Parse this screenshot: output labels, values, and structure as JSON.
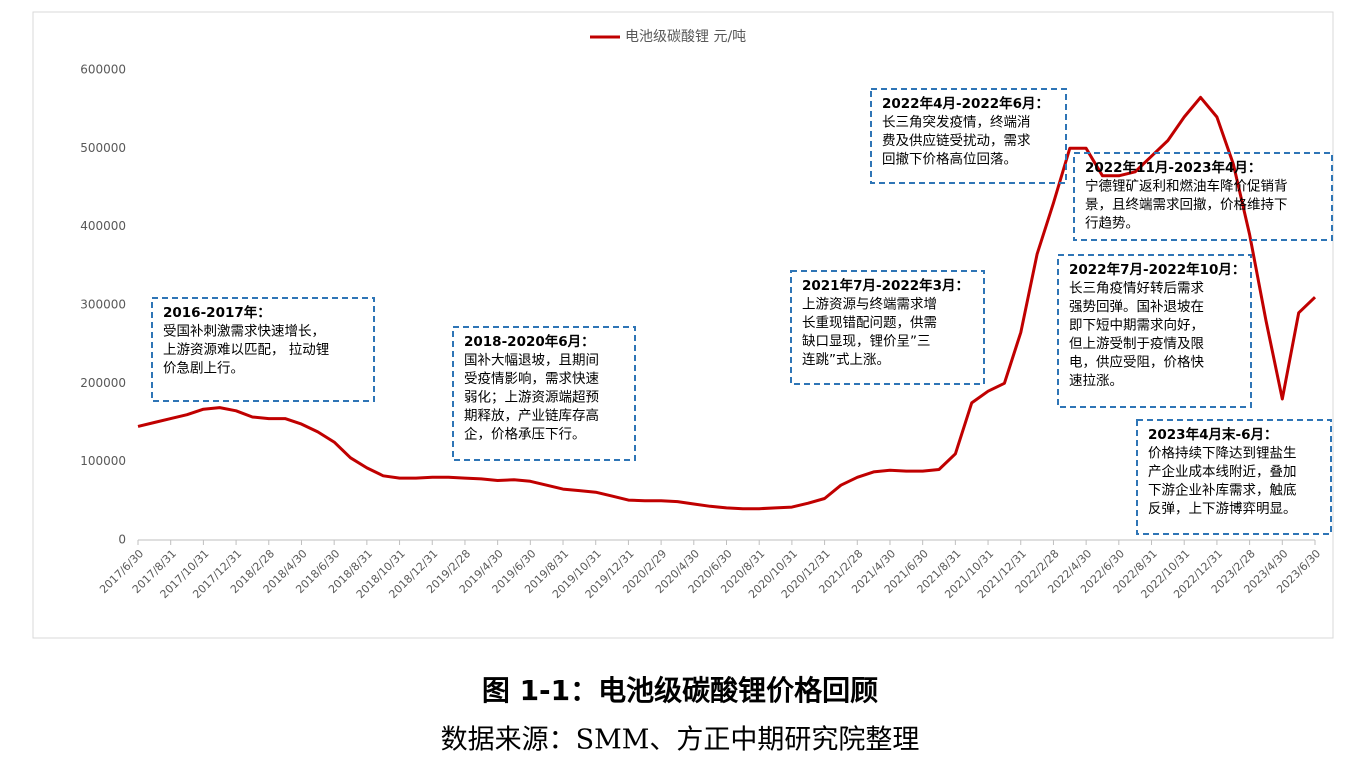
{
  "chart_data": {
    "type": "line",
    "series": [
      {
        "name": "电池级碳酸锂 元/吨",
        "color": "#c00000",
        "values": [
          145000,
          150000,
          155000,
          160000,
          167000,
          169000,
          165000,
          157000,
          155000,
          155000,
          148000,
          138000,
          125000,
          105000,
          92000,
          82000,
          79000,
          79000,
          80000,
          80000,
          79000,
          78000,
          76000,
          77000,
          75000,
          70000,
          65000,
          63000,
          61000,
          56000,
          51000,
          50000,
          50000,
          49000,
          46000,
          43000,
          41000,
          40000,
          40000,
          41000,
          42000,
          47000,
          53000,
          70000,
          80000,
          87000,
          89000,
          88000,
          88000,
          90000,
          110000,
          175000,
          190000,
          200000,
          265000,
          365000,
          430000,
          500000,
          500000,
          465000,
          465000,
          470000,
          490000,
          510000,
          540000,
          565000,
          540000,
          480000,
          390000,
          280000,
          180000,
          290000,
          310000
        ]
      }
    ],
    "categories": [
      "2017/6/30",
      null,
      "2017/8/31",
      null,
      "2017/10/31",
      null,
      "2017/12/31",
      null,
      "2018/2/28",
      null,
      "2018/4/30",
      null,
      "2018/6/30",
      null,
      "2018/8/31",
      null,
      "2018/10/31",
      null,
      "2018/12/31",
      null,
      "2019/2/28",
      null,
      "2019/4/30",
      null,
      "2019/6/30",
      null,
      "2019/8/31",
      null,
      "2019/10/31",
      null,
      "2019/12/31",
      null,
      "2020/2/29",
      null,
      "2020/4/30",
      null,
      "2020/6/30",
      null,
      "2020/8/31",
      null,
      "2020/10/31",
      null,
      "2020/12/31",
      null,
      "2021/2/28",
      null,
      "2021/4/30",
      null,
      "2021/6/30",
      null,
      "2021/8/31",
      null,
      "2021/10/31",
      null,
      "2021/12/31",
      null,
      "2022/2/28",
      null,
      "2022/4/30",
      null,
      "2022/6/30",
      null,
      "2022/8/31",
      null,
      "2022/10/31",
      null,
      "2022/12/31",
      null,
      "2023/2/28",
      null,
      "2023/4/30",
      null,
      "2023/6/30"
    ],
    "ylim": [
      0,
      600000
    ],
    "yticks": [
      0,
      100000,
      200000,
      300000,
      400000,
      500000,
      600000
    ],
    "annotations": [
      [
        "2016-2017年：",
        "受国补刺激需求快速增长，",
        "上游资源难以匹配，  拉动锂",
        "价急剧上行。"
      ],
      [
        "2018-2020年6月：",
        "国补大幅退坡，且期间",
        "受疫情影响，需求快速",
        "弱化；上游资源端超预",
        "期释放，产业链库存高",
        "企，价格承压下行。"
      ],
      [
        "2021年7月-2022年3月：",
        "上游资源与终端需求增",
        "长重现错配问题，供需",
        "缺口显现，锂价呈”三",
        "连跳”式上涨。"
      ],
      [
        "2022年4月-2022年6月：",
        "长三角突发疫情，终端消",
        "费及供应链受扰动，需求",
        "回撤下价格高位回落。"
      ],
      [
        "2022年11月-2023年4月：",
        "宁德锂矿返利和燃油车降价促销背",
        "景，且终端需求回撤，价格维持下",
        "行趋势。"
      ],
      [
        "2022年7月-2022年10月：",
        "长三角疫情好转后需求",
        "强势回弹。国补退坡在",
        "即下短中期需求向好，",
        "但上游受制于疫情及限",
        "电，供应受阻，价格快",
        "速拉涨。"
      ],
      [
        "2023年4月末-6月：",
        "价格持续下降达到锂盐生",
        "产企业成本线附近，叠加",
        "下游企业补库需求，触底",
        "反弹，上下游博弈明显。"
      ]
    ]
  },
  "figure_caption": {
    "title": "图 1-1：电池级碳酸锂价格回顾",
    "source": "数据来源：SMM、方正中期研究院整理"
  }
}
